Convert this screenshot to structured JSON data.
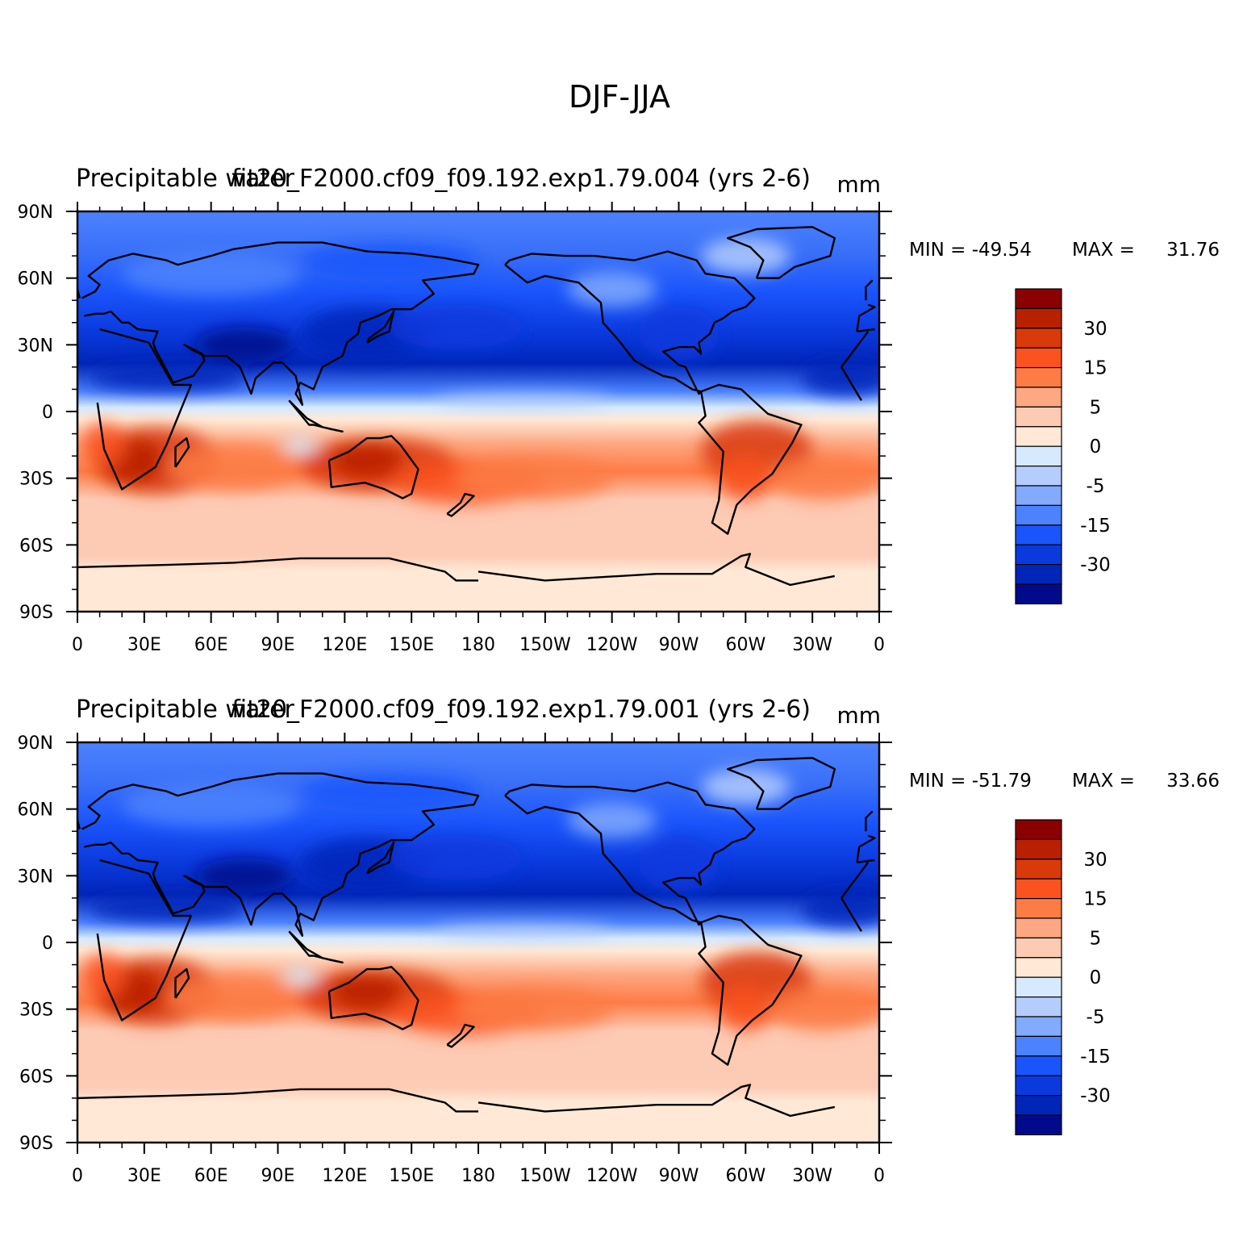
{
  "figure": {
    "title": "DJF-JJA"
  },
  "panels": [
    {
      "case_label": "fit20_F2000.cf09_f09.192.exp1.79.004 (yrs 2-6)",
      "variable_label": "Precipitable water",
      "units": "mm",
      "min_label": "MIN = -49.54",
      "max_label": "MAX =",
      "max_value": "31.76"
    },
    {
      "case_label": "fit20_F2000.cf09_f09.192.exp1.79.001 (yrs 2-6)",
      "variable_label": "Precipitable water",
      "units": "mm",
      "min_label": "MIN = -51.79",
      "max_label": "MAX =",
      "max_value": "33.66"
    }
  ],
  "axes": {
    "lat_ticks": [
      "90N",
      "60N",
      "30N",
      "0",
      "30S",
      "60S",
      "90S"
    ],
    "lon_ticks": [
      "0",
      "30E",
      "60E",
      "90E",
      "120E",
      "150E",
      "180",
      "150W",
      "120W",
      "90W",
      "60W",
      "30W",
      "0"
    ]
  },
  "colorbar": {
    "colors_top_to_bottom": [
      "#8b0000",
      "#b82000",
      "#d93a0a",
      "#fa531f",
      "#fd7c46",
      "#fda882",
      "#fdcab4",
      "#ffe9d6",
      "#d6eaff",
      "#b4cdfd",
      "#82aafd",
      "#4c82fd",
      "#1a55fb",
      "#0a3ade",
      "#0026b8",
      "#000a8b"
    ],
    "tick_labels": [
      "30",
      "15",
      "5",
      "0",
      "-5",
      "-15",
      "-30"
    ]
  },
  "chart_data": {
    "type": "heatmap",
    "title": "DJF-JJA",
    "projection": "cylindrical-equidistant",
    "xlim": [
      0,
      360
    ],
    "ylim": [
      -90,
      90
    ],
    "xticks": [
      0,
      30,
      60,
      90,
      120,
      150,
      180,
      210,
      240,
      270,
      300,
      330,
      360
    ],
    "yticks": [
      90,
      60,
      30,
      0,
      -30,
      -60,
      -90
    ],
    "contour_levels": [
      -40,
      -30,
      -25,
      -20,
      -15,
      -10,
      -5,
      -2,
      0,
      2,
      5,
      10,
      15,
      20,
      25,
      30,
      40
    ],
    "fields": [
      {
        "name": "fit20_F2000.cf09_f09.192.exp1.79.004",
        "min": -49.54,
        "max": 31.76
      },
      {
        "name": "fit20_F2000.cf09_f09.192.exp1.79.001",
        "min": -51.79,
        "max": 33.66
      }
    ]
  }
}
